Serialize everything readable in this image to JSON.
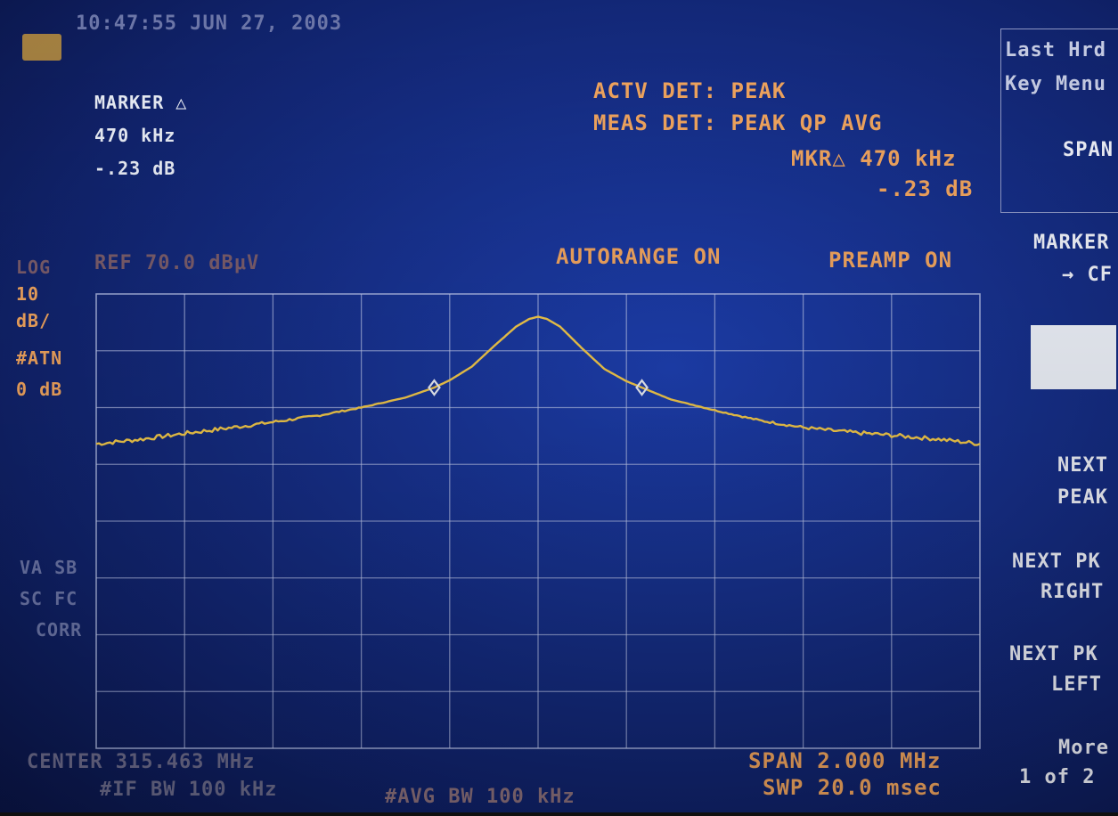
{
  "header": {
    "timestamp": "10:47:55 JUN 27, 2003"
  },
  "marker_block": {
    "title": "MARKER △",
    "freq": "470 kHz",
    "level": "-.23 dB"
  },
  "detector": {
    "actv": "ACTV DET: PEAK",
    "meas": "MEAS DET: PEAK QP AVG",
    "mkr_freq": "MKR△ 470 kHz",
    "mkr_level": "-.23 dB"
  },
  "status": {
    "ref": "REF 70.0 dBμV",
    "autorange": "AUTORANGE ON",
    "preamp": "PREAMP ON"
  },
  "left_labels": {
    "scale": [
      "LOG",
      "10",
      "dB/",
      "#ATN",
      "0 dB"
    ],
    "indicators": [
      "VA SB",
      "SC FC",
      "CORR"
    ]
  },
  "footer": {
    "center": "CENTER 315.463 MHz",
    "rbw": "#IF BW 100 kHz",
    "avg_bw": "#AVG BW 100 kHz",
    "span": "SPAN 2.000 MHz",
    "sweep": "SWP 20.0 msec"
  },
  "softkeys": {
    "top_box": [
      "Last Hrd",
      "Key Menu",
      "SPAN"
    ],
    "marker_cf": [
      "MARKER",
      "→ CF"
    ],
    "next_peak": [
      "NEXT",
      "PEAK"
    ],
    "next_pk_right": [
      "NEXT PK",
      "RIGHT"
    ],
    "next_pk_left": [
      "NEXT PK",
      "LEFT"
    ],
    "more": [
      "More",
      "1 of 2"
    ]
  },
  "colors": {
    "trace": "#f2c84a",
    "graticule": "#c4cdf0",
    "annotation": "#f0a45e",
    "marker": "#e8ecf5"
  },
  "chart_data": {
    "type": "line",
    "xlabel": "",
    "ylabel": "",
    "x_units": "MHz",
    "y_units": "dBμV",
    "center_mhz": 315.463,
    "span_mhz": 2.0,
    "ylim": [
      -30.0,
      70.0
    ],
    "ref_level": 70.0,
    "grid": true,
    "x": [
      314.463,
      314.563,
      314.663,
      314.763,
      314.863,
      314.963,
      315.063,
      315.163,
      315.228,
      315.263,
      315.313,
      315.363,
      315.413,
      315.443,
      315.463,
      315.483,
      315.513,
      315.563,
      315.613,
      315.663,
      315.698,
      315.763,
      315.863,
      315.963,
      316.063,
      316.163,
      316.263,
      316.363,
      316.463
    ],
    "y": [
      37.0,
      38.0,
      39.3,
      40.5,
      41.8,
      43.2,
      45.0,
      47.2,
      49.4,
      51.0,
      54.0,
      58.5,
      62.8,
      64.5,
      65.0,
      64.5,
      62.8,
      58.0,
      53.5,
      50.8,
      49.4,
      46.8,
      44.4,
      42.2,
      40.6,
      39.6,
      38.9,
      38.1,
      37.0
    ],
    "markers": [
      {
        "x": 315.228,
        "y": 49.4
      },
      {
        "x": 315.698,
        "y": 49.4
      }
    ]
  }
}
